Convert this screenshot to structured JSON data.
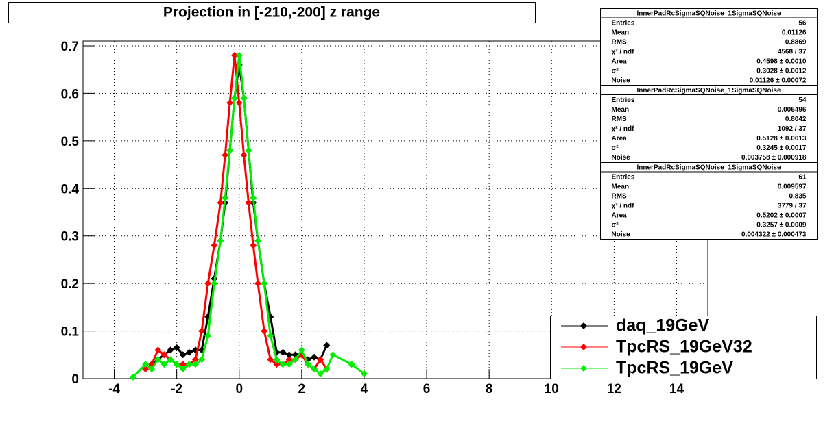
{
  "chart_data": {
    "type": "scatter",
    "title": "Projection in [-210,-200] z range",
    "x": [
      -3.4,
      -3.0,
      -2.8,
      -2.6,
      -2.4,
      -2.2,
      -2.0,
      -1.8,
      -1.6,
      -1.4,
      -1.2,
      -1.0,
      -0.8,
      -0.6,
      -0.45,
      -0.3,
      -0.15,
      0,
      0.15,
      0.3,
      0.45,
      0.6,
      0.8,
      1.0,
      1.2,
      1.4,
      1.6,
      1.8,
      2.0,
      2.2,
      2.4,
      2.6,
      2.8,
      3.0,
      3.6,
      4.0
    ],
    "series": [
      {
        "name": "daq_19GeV",
        "color": "#000000",
        "values": [
          null,
          null,
          0.03,
          0.04,
          0.05,
          0.06,
          0.065,
          0.05,
          0.055,
          0.06,
          0.06,
          0.13,
          0.21,
          0.29,
          0.37,
          0.48,
          0.59,
          0.66,
          0.59,
          0.48,
          0.37,
          0.29,
          0.2,
          0.13,
          0.055,
          0.055,
          0.05,
          0.05,
          0.05,
          0.04,
          0.045,
          0.04,
          0.07,
          null,
          null,
          null
        ]
      },
      {
        "name": "TpcRS_19GeV32",
        "color": "#ff0000",
        "values": [
          null,
          0.02,
          0.03,
          0.06,
          0.05,
          0.04,
          0.03,
          0.03,
          0.03,
          0.04,
          0.1,
          0.2,
          0.28,
          0.37,
          0.47,
          0.58,
          0.68,
          0.58,
          0.47,
          0.37,
          0.28,
          0.2,
          0.1,
          0.04,
          0.03,
          0.03,
          0.04,
          0.04,
          0.05,
          0.03,
          0.02,
          0.04,
          0.02,
          null,
          null,
          null
        ]
      },
      {
        "name": "TpcRS_19GeV",
        "color": "#00ee00",
        "values": [
          0.003,
          0.03,
          0.02,
          0.04,
          0.03,
          0.04,
          0.03,
          0.02,
          0.03,
          0.03,
          0.04,
          0.09,
          0.2,
          0.29,
          0.38,
          0.48,
          0.59,
          0.68,
          0.59,
          0.48,
          0.38,
          0.29,
          0.2,
          0.09,
          0.04,
          0.03,
          0.03,
          0.04,
          0.06,
          0.03,
          0.02,
          0.01,
          0.02,
          0.05,
          0.03,
          0.01
        ]
      }
    ],
    "xlim": [
      -5,
      15
    ],
    "ylim": [
      0,
      0.71
    ],
    "xticks": [
      -4,
      -2,
      0,
      2,
      4,
      6,
      8,
      10,
      12,
      14
    ],
    "yticks": [
      0,
      0.1,
      0.2,
      0.3,
      0.4,
      0.5,
      0.6,
      0.7
    ],
    "grid": true,
    "legend": "bottom-right",
    "stats": [
      {
        "title": "InnerPadRcSigmaSQNoise_1SigmaSQNoise",
        "rows": [
          [
            "Entries",
            "56"
          ],
          [
            "Mean",
            "0.01126"
          ],
          [
            "RMS",
            "0.8869"
          ],
          [
            "χ² / ndf",
            "4568 / 37"
          ],
          [
            "Area",
            "0.4598 ± 0.0010"
          ],
          [
            "σ²",
            "0.3028 ± 0.0012"
          ],
          [
            "Noise",
            "0.01126 ± 0.00072"
          ]
        ]
      },
      {
        "title": "InnerPadRcSigmaSQNoise_1SigmaSQNoise",
        "rows": [
          [
            "Entries",
            "54"
          ],
          [
            "Mean",
            "0.006496"
          ],
          [
            "RMS",
            "0.8042"
          ],
          [
            "χ² / ndf",
            "1092 / 37"
          ],
          [
            "Area",
            "0.5128 ± 0.0013"
          ],
          [
            "σ²",
            "0.3245 ± 0.0017"
          ],
          [
            "Noise",
            "0.003758 ± 0.000918"
          ]
        ]
      },
      {
        "title": "InnerPadRcSigmaSQNoise_1SigmaSQNoise",
        "rows": [
          [
            "Entries",
            "61"
          ],
          [
            "Mean",
            "0.009597"
          ],
          [
            "RMS",
            "0.835"
          ],
          [
            "χ² / ndf",
            "3779 / 37"
          ],
          [
            "Area",
            "0.5202 ± 0.0007"
          ],
          [
            "σ²",
            "0.3257 ± 0.0009"
          ],
          [
            "Noise",
            "0.004322 ± 0.000473"
          ]
        ]
      }
    ]
  }
}
